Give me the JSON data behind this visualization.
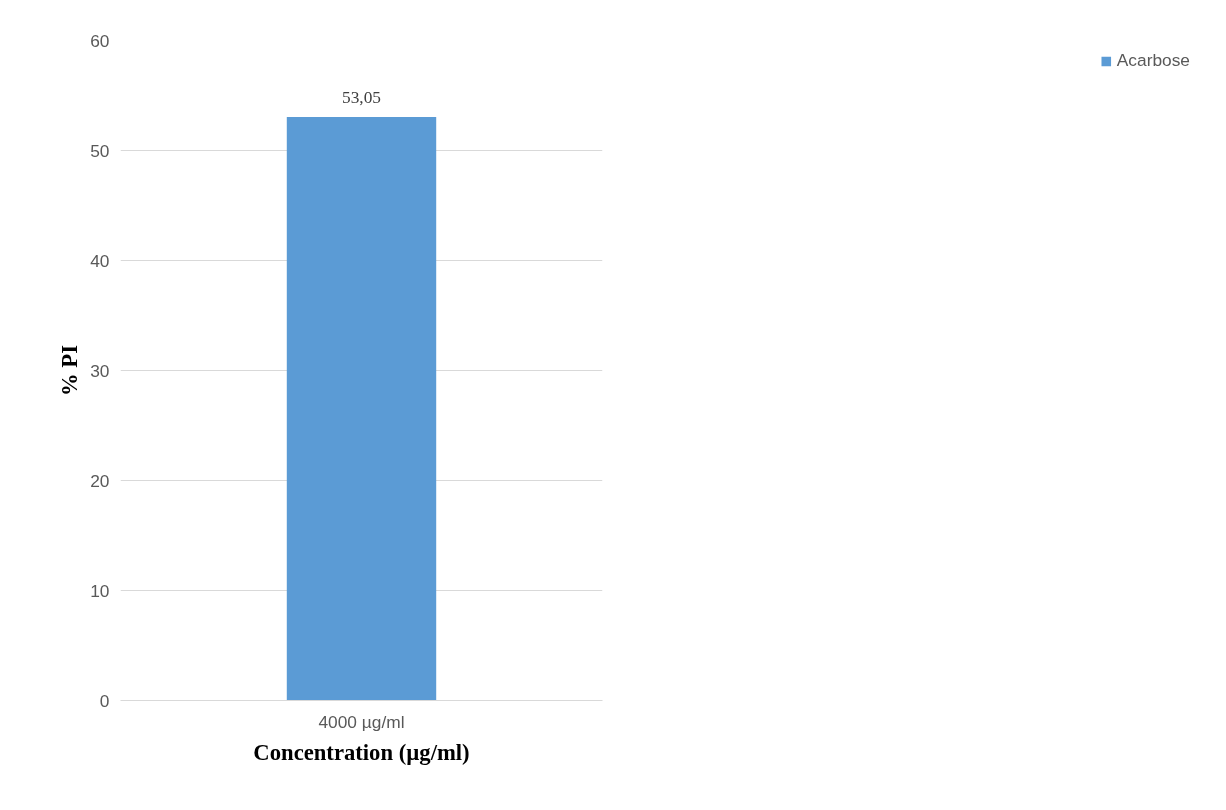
{
  "chart_data": {
    "type": "bar",
    "xlabel": "Concentration (µg/ml)",
    "ylabel": "% PI",
    "categories": [
      "4000 µg/ml"
    ],
    "series": [
      {
        "name": "Acarbose",
        "color": "#5b9bd5",
        "values": [
          53.05
        ],
        "value_labels": [
          "53,05"
        ]
      }
    ],
    "ylim": [
      0,
      60
    ],
    "yticks": [
      0,
      10,
      20,
      30,
      40,
      50,
      60
    ],
    "grid": "y",
    "legend": "right"
  }
}
